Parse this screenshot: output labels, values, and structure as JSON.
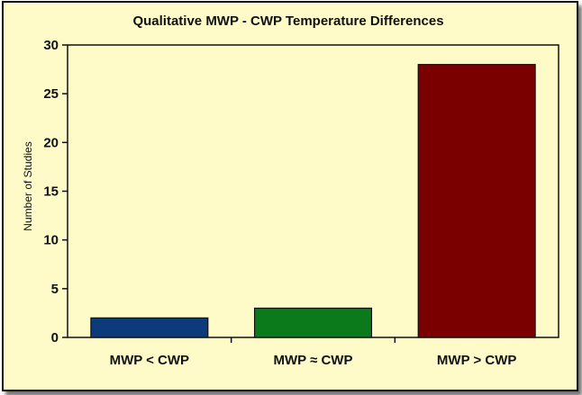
{
  "chart_data": {
    "type": "bar",
    "title": "Qualitative MWP - CWP Temperature Differences",
    "xlabel": "",
    "ylabel": "Number of Studies",
    "categories": [
      "MWP < CWP",
      "MWP ≈ CWP",
      "MWP > CWP"
    ],
    "values": [
      2,
      3,
      28
    ],
    "colors": [
      "#0d3a7a",
      "#0b7a1a",
      "#7a0000"
    ],
    "ylim": [
      0,
      30
    ],
    "yticks": [
      0,
      5,
      10,
      15,
      20,
      25,
      30
    ],
    "grid": false,
    "legend": "none",
    "background": "#fffbc9"
  }
}
